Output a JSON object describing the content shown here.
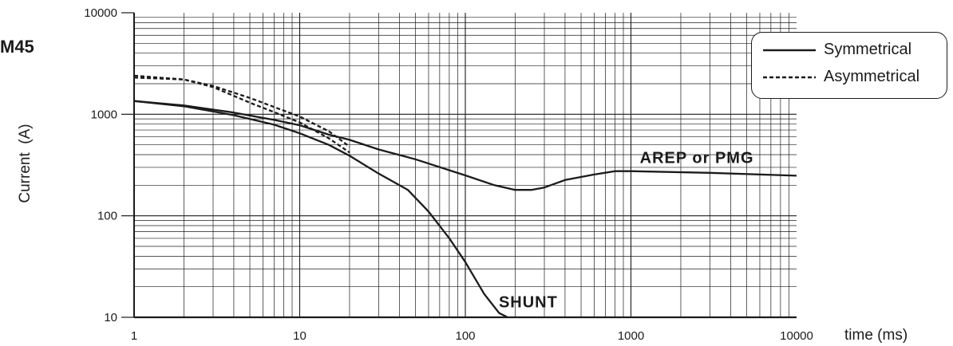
{
  "page": {
    "side_title": "M45",
    "colors": {
      "ink": "#1b1b1b",
      "background": "#ffffff"
    }
  },
  "chart_data": {
    "type": "line",
    "x_scale": "log",
    "y_scale": "log",
    "xlim": [
      1,
      10000
    ],
    "ylim": [
      10,
      10000
    ],
    "xlabel": "time (ms)",
    "ylabel": "Current  (A)",
    "x_ticks": [
      1,
      10,
      100,
      1000,
      10000
    ],
    "x_tick_labels": [
      "1",
      "10",
      "100",
      "1000",
      "10000"
    ],
    "y_ticks": [
      10,
      100,
      1000,
      10000
    ],
    "y_tick_labels": [
      "10",
      "100",
      "1000",
      "10000"
    ],
    "grid": "on (major and minor)",
    "legend": {
      "placement": "top-right",
      "entries": [
        {
          "label": "Symmetrical",
          "style": "solid"
        },
        {
          "label": "Asymmetrical",
          "style": "dashed"
        }
      ]
    },
    "annotations": [
      "AREP or PMG",
      "SHUNT"
    ],
    "series": [
      {
        "style": "solid",
        "label_ref": "AREP or PMG",
        "x": [
          1,
          2,
          4,
          7,
          10,
          15,
          20,
          30,
          50,
          100,
          150,
          200,
          250,
          300,
          400,
          600,
          800,
          1000,
          3000,
          10000
        ],
        "y": [
          1350,
          1220,
          1040,
          880,
          780,
          630,
          560,
          450,
          360,
          250,
          200,
          180,
          180,
          190,
          225,
          255,
          275,
          275,
          265,
          248
        ]
      },
      {
        "style": "solid",
        "label_ref": "SHUNT",
        "x": [
          1,
          2,
          4,
          7,
          10,
          15,
          20,
          30,
          45,
          60,
          80,
          100,
          130,
          160,
          180
        ],
        "y": [
          1350,
          1200,
          980,
          790,
          650,
          500,
          390,
          260,
          180,
          110,
          60,
          35,
          17,
          11,
          9.5
        ]
      },
      {
        "style": "dashed",
        "x": [
          1,
          2,
          3,
          5,
          7,
          10,
          15,
          20
        ],
        "y": [
          2300,
          2200,
          1850,
          1300,
          1050,
          830,
          580,
          420
        ]
      },
      {
        "style": "dashed",
        "x": [
          1,
          2,
          3,
          5,
          7,
          10,
          15,
          20
        ],
        "y": [
          2400,
          2200,
          1900,
          1450,
          1180,
          950,
          680,
          480
        ]
      }
    ]
  }
}
